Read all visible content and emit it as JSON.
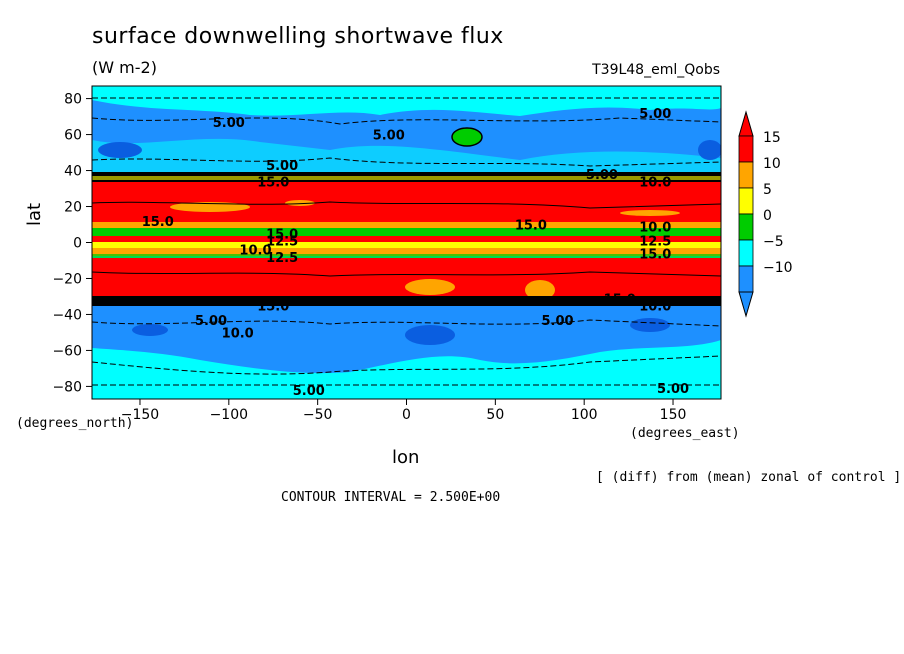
{
  "chart_data": {
    "type": "heatmap",
    "title": "surface downwelling shortwave flux",
    "subtitle": "(W m-2)",
    "run_label": "T39L48_eml_Qobs",
    "xlabel": "lon",
    "ylabel": "lat",
    "x_units": "(degrees_east)",
    "y_units": "(degrees_north)",
    "xlim": [
      -177,
      177
    ],
    "ylim": [
      -87,
      87
    ],
    "x_ticks": [
      -150,
      -100,
      -50,
      0,
      50,
      100,
      150
    ],
    "y_ticks": [
      -80,
      -60,
      -40,
      -20,
      0,
      20,
      40,
      60,
      80
    ],
    "x_tick_labels": [
      "−150",
      "−100",
      "−50",
      "0",
      "50",
      "100",
      "150"
    ],
    "y_tick_labels": [
      "−80",
      "−60",
      "−40",
      "−20",
      "0",
      "20",
      "40",
      "60",
      "80"
    ],
    "note": "[ (diff) from (mean) zonal of control ]",
    "contour_interval": "CONTOUR INTERVAL = 2.500E+00",
    "colorbar": {
      "labels": [
        "15",
        "10",
        "5",
        "0",
        "−5",
        "−10"
      ],
      "levels": [
        15,
        10,
        5,
        0,
        -5,
        -10
      ],
      "colors": [
        "#ff0000",
        "#ffa500",
        "#ffff00",
        "#00cc00",
        "#00ffff",
        "#1e90ff"
      ]
    },
    "contour_labels": [
      {
        "text": "5.00",
        "lon": -100,
        "lat": 67
      },
      {
        "text": "5.00",
        "lon": -10,
        "lat": 60
      },
      {
        "text": "5.00",
        "lon": 140,
        "lat": 72
      },
      {
        "text": "5.00",
        "lon": -70,
        "lat": 43
      },
      {
        "text": "5.00",
        "lon": 110,
        "lat": 38
      },
      {
        "text": "15.0",
        "lon": -75,
        "lat": 34
      },
      {
        "text": "10.0",
        "lon": 140,
        "lat": 34
      },
      {
        "text": "15.0",
        "lon": -140,
        "lat": 12
      },
      {
        "text": "15.0",
        "lon": 70,
        "lat": 10
      },
      {
        "text": "10.0",
        "lon": 140,
        "lat": 9
      },
      {
        "text": "15.0",
        "lon": -70,
        "lat": 5
      },
      {
        "text": "12.5",
        "lon": -70,
        "lat": 1
      },
      {
        "text": "12.5",
        "lon": 140,
        "lat": 1
      },
      {
        "text": "10.0",
        "lon": -85,
        "lat": -4
      },
      {
        "text": "12.5",
        "lon": -70,
        "lat": -8
      },
      {
        "text": "15.0",
        "lon": 140,
        "lat": -6
      },
      {
        "text": "15.0",
        "lon": 120,
        "lat": -31
      },
      {
        "text": "10.0",
        "lon": 140,
        "lat": -35
      },
      {
        "text": "15.0",
        "lon": -75,
        "lat": -35
      },
      {
        "text": "5.00",
        "lon": -110,
        "lat": -43
      },
      {
        "text": "5.00",
        "lon": 85,
        "lat": -43
      },
      {
        "text": "10.0",
        "lon": -95,
        "lat": -50
      },
      {
        "text": "5.00",
        "lon": -55,
        "lat": -82
      },
      {
        "text": "5.00",
        "lon": 150,
        "lat": -81
      }
    ]
  }
}
